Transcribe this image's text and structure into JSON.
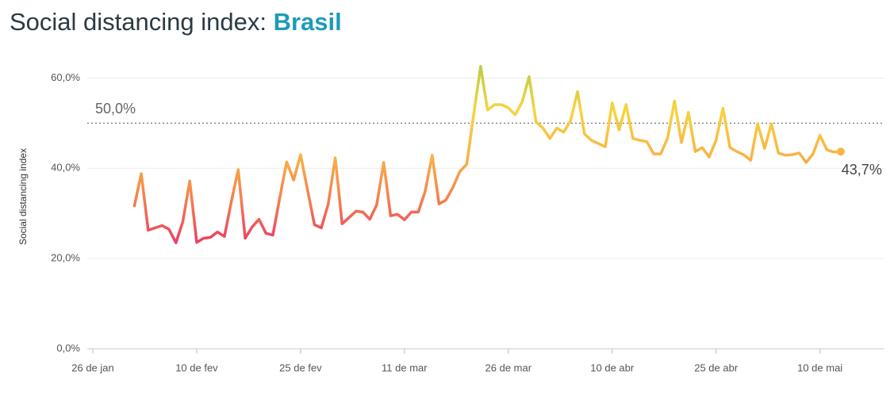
{
  "chart_data": {
    "type": "line",
    "title": "Social distancing index:",
    "title_highlight": "Brasil",
    "y_label": "Social distancing index",
    "categories": [
      "26 de jan",
      null,
      null,
      null,
      null,
      null,
      null,
      null,
      null,
      null,
      null,
      null,
      null,
      null,
      null,
      "10 de fev",
      null,
      null,
      null,
      null,
      null,
      null,
      null,
      null,
      null,
      null,
      null,
      null,
      null,
      null,
      "25 de fev",
      null,
      null,
      null,
      null,
      null,
      null,
      null,
      null,
      null,
      null,
      null,
      null,
      null,
      null,
      "11 de mar",
      null,
      null,
      null,
      null,
      null,
      null,
      null,
      null,
      null,
      null,
      null,
      null,
      null,
      null,
      "26 de mar",
      null,
      null,
      null,
      null,
      null,
      null,
      null,
      null,
      null,
      null,
      null,
      null,
      null,
      null,
      "10 de abr",
      null,
      null,
      null,
      null,
      null,
      null,
      null,
      null,
      null,
      null,
      null,
      null,
      null,
      null,
      "25 de abr",
      null,
      null,
      null,
      null,
      null,
      null,
      null,
      null,
      null,
      null,
      null,
      null,
      null,
      null,
      "10 de mai",
      null,
      null,
      null,
      null,
      null,
      null,
      null,
      null,
      null
    ],
    "values": [
      null,
      null,
      null,
      null,
      null,
      null,
      31.7,
      38.8,
      26.3,
      26.8,
      27.3,
      26.5,
      23.5,
      28.2,
      37.2,
      23.6,
      24.5,
      24.7,
      25.9,
      24.9,
      32.6,
      39.7,
      24.5,
      27.0,
      28.7,
      25.6,
      25.2,
      33.5,
      41.4,
      37.4,
      43.0,
      35.3,
      27.5,
      26.8,
      32.1,
      42.3,
      27.7,
      29.1,
      30.5,
      30.3,
      28.7,
      31.9,
      41.3,
      29.5,
      29.8,
      28.6,
      30.3,
      30.3,
      34.9,
      42.9,
      32.1,
      33.0,
      35.8,
      39.3,
      40.9,
      52.0,
      62.6,
      52.9,
      54.1,
      54.1,
      53.4,
      51.9,
      54.7,
      60.3,
      50.3,
      48.9,
      46.6,
      48.9,
      48.0,
      50.6,
      57.0,
      47.6,
      46.2,
      45.5,
      44.8,
      54.5,
      48.5,
      54.1,
      46.6,
      46.2,
      45.9,
      43.2,
      43.2,
      46.7,
      54.9,
      45.7,
      52.4,
      43.7,
      44.6,
      42.5,
      46.2,
      53.3,
      44.6,
      43.7,
      43.0,
      41.8,
      49.9,
      44.4,
      49.9,
      43.4,
      42.9,
      43.0,
      43.4,
      41.3,
      43.2,
      47.3,
      44.1,
      43.6,
      43.7,
      null,
      null,
      null,
      null,
      null,
      null
    ],
    "value_labels": [
      null,
      null,
      null,
      null,
      null,
      null,
      null,
      null,
      null,
      null,
      null,
      null,
      null,
      null,
      null,
      null,
      null,
      null,
      null,
      null,
      null,
      null,
      null,
      null,
      null,
      null,
      null,
      null,
      null,
      null,
      null,
      null,
      null,
      null,
      null,
      null,
      null,
      null,
      null,
      null,
      null,
      null,
      null,
      null,
      null,
      null,
      null,
      null,
      null,
      null,
      null,
      null,
      null,
      null,
      null,
      null,
      null,
      null,
      null,
      null,
      null,
      null,
      null,
      null,
      null,
      null,
      null,
      null,
      null,
      null,
      null,
      null,
      null,
      null,
      null,
      null,
      null,
      null,
      null,
      null,
      null,
      null,
      null,
      null,
      null,
      null,
      null,
      null,
      null,
      null,
      null,
      null,
      null,
      null,
      null,
      null,
      null,
      null,
      null,
      null,
      null,
      null,
      null,
      null,
      null,
      null,
      null,
      null,
      "43,7%",
      null,
      null,
      null,
      null,
      null,
      null
    ],
    "color_stops": [
      "#ec3f62",
      "#f5804f",
      "#f8b445",
      "#f7d43f",
      "#bccb4a"
    ],
    "reference_line": {
      "value": 50,
      "label": "50,0%"
    },
    "ylim": [
      0,
      65
    ],
    "yticks": [
      {
        "value": 0,
        "label": "0,0%"
      },
      {
        "value": 20,
        "label": "20,0%"
      },
      {
        "value": 40,
        "label": "40,0%"
      },
      {
        "value": 60,
        "label": "60,0%"
      }
    ],
    "grid": true
  }
}
